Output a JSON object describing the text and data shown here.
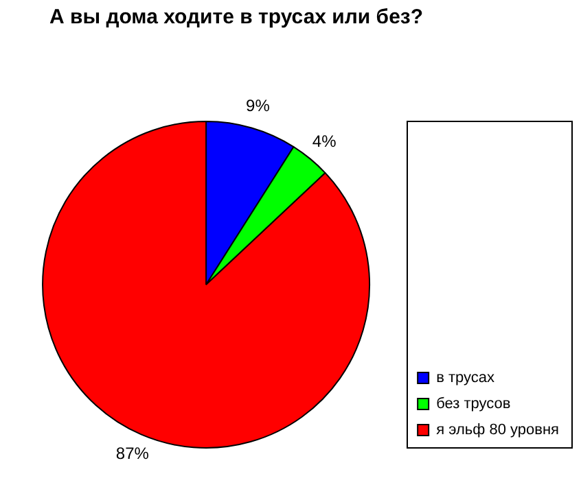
{
  "chart_data": {
    "type": "pie",
    "title": "А вы дома ходите в трусах или без?",
    "categories": [
      "в трусах",
      "без трусов",
      "я эльф 80 уровня"
    ],
    "values": [
      9,
      4,
      87
    ],
    "colors": [
      "#0000ff",
      "#00ff00",
      "#ff0000"
    ],
    "value_labels": [
      "9%",
      "4%",
      "87%"
    ],
    "legend": "bottom right"
  }
}
